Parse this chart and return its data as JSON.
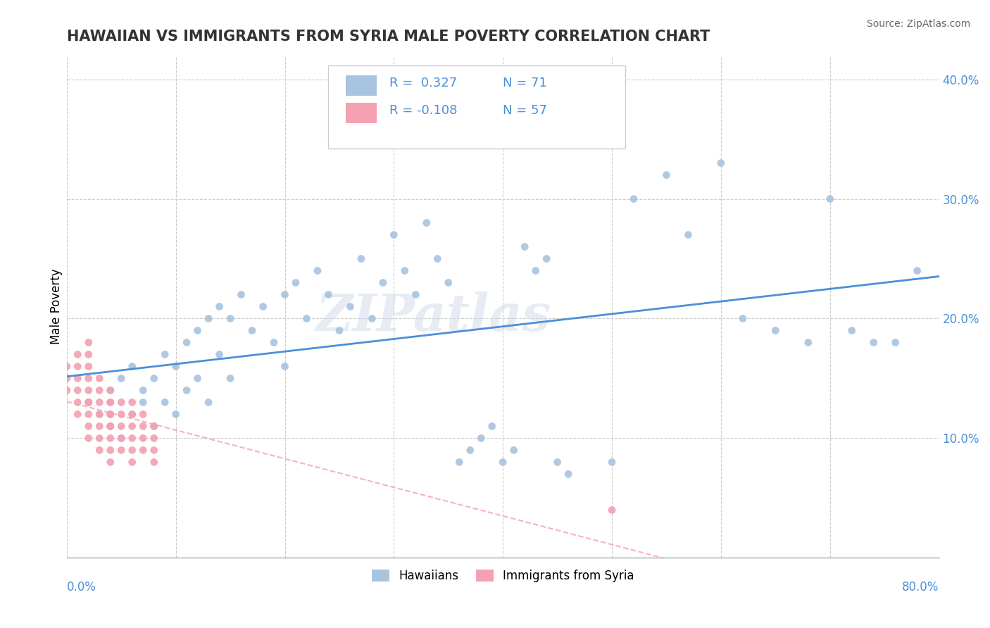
{
  "title": "HAWAIIAN VS IMMIGRANTS FROM SYRIA MALE POVERTY CORRELATION CHART",
  "source": "Source: ZipAtlas.com",
  "ylabel": "Male Poverty",
  "xlim": [
    0.0,
    0.8
  ],
  "ylim": [
    0.0,
    0.42
  ],
  "hawaiians_color": "#a8c4e0",
  "syria_color": "#f4a0b0",
  "line1_color": "#4a90d9",
  "line2_color": "#f4a0b0",
  "watermark": "ZIPatlas",
  "legend_label1": "Hawaiians",
  "legend_label2": "Immigrants from Syria",
  "hawaiians_x": [
    0.02,
    0.03,
    0.04,
    0.04,
    0.05,
    0.05,
    0.06,
    0.06,
    0.07,
    0.07,
    0.08,
    0.08,
    0.09,
    0.09,
    0.1,
    0.1,
    0.11,
    0.11,
    0.12,
    0.12,
    0.13,
    0.13,
    0.14,
    0.14,
    0.15,
    0.15,
    0.16,
    0.17,
    0.18,
    0.19,
    0.2,
    0.2,
    0.21,
    0.22,
    0.23,
    0.24,
    0.25,
    0.26,
    0.27,
    0.28,
    0.29,
    0.3,
    0.31,
    0.32,
    0.33,
    0.34,
    0.35,
    0.36,
    0.37,
    0.38,
    0.39,
    0.4,
    0.41,
    0.42,
    0.43,
    0.44,
    0.45,
    0.46,
    0.5,
    0.52,
    0.55,
    0.57,
    0.6,
    0.62,
    0.65,
    0.68,
    0.7,
    0.72,
    0.74,
    0.76,
    0.78
  ],
  "hawaiians_y": [
    0.13,
    0.12,
    0.14,
    0.11,
    0.15,
    0.1,
    0.16,
    0.12,
    0.13,
    0.14,
    0.15,
    0.11,
    0.17,
    0.13,
    0.16,
    0.12,
    0.18,
    0.14,
    0.19,
    0.15,
    0.2,
    0.13,
    0.21,
    0.17,
    0.2,
    0.15,
    0.22,
    0.19,
    0.21,
    0.18,
    0.22,
    0.16,
    0.23,
    0.2,
    0.24,
    0.22,
    0.19,
    0.21,
    0.25,
    0.2,
    0.23,
    0.27,
    0.24,
    0.22,
    0.28,
    0.25,
    0.23,
    0.08,
    0.09,
    0.1,
    0.11,
    0.08,
    0.09,
    0.26,
    0.24,
    0.25,
    0.08,
    0.07,
    0.08,
    0.3,
    0.32,
    0.27,
    0.33,
    0.2,
    0.19,
    0.18,
    0.3,
    0.19,
    0.18,
    0.18,
    0.24
  ],
  "syria_x": [
    0.0,
    0.0,
    0.0,
    0.01,
    0.01,
    0.01,
    0.01,
    0.01,
    0.01,
    0.02,
    0.02,
    0.02,
    0.02,
    0.02,
    0.02,
    0.02,
    0.02,
    0.02,
    0.02,
    0.02,
    0.03,
    0.03,
    0.03,
    0.03,
    0.03,
    0.03,
    0.03,
    0.04,
    0.04,
    0.04,
    0.04,
    0.04,
    0.04,
    0.04,
    0.04,
    0.04,
    0.04,
    0.05,
    0.05,
    0.05,
    0.05,
    0.05,
    0.06,
    0.06,
    0.06,
    0.06,
    0.06,
    0.06,
    0.07,
    0.07,
    0.07,
    0.07,
    0.08,
    0.08,
    0.08,
    0.08,
    0.5
  ],
  "syria_y": [
    0.14,
    0.15,
    0.16,
    0.12,
    0.13,
    0.14,
    0.15,
    0.16,
    0.17,
    0.13,
    0.14,
    0.15,
    0.16,
    0.17,
    0.18,
    0.13,
    0.12,
    0.11,
    0.1,
    0.13,
    0.14,
    0.15,
    0.13,
    0.12,
    0.11,
    0.1,
    0.09,
    0.14,
    0.13,
    0.12,
    0.11,
    0.1,
    0.09,
    0.08,
    0.13,
    0.12,
    0.11,
    0.13,
    0.12,
    0.11,
    0.1,
    0.09,
    0.13,
    0.12,
    0.11,
    0.1,
    0.09,
    0.08,
    0.12,
    0.11,
    0.1,
    0.09,
    0.11,
    0.1,
    0.09,
    0.08,
    0.04
  ]
}
